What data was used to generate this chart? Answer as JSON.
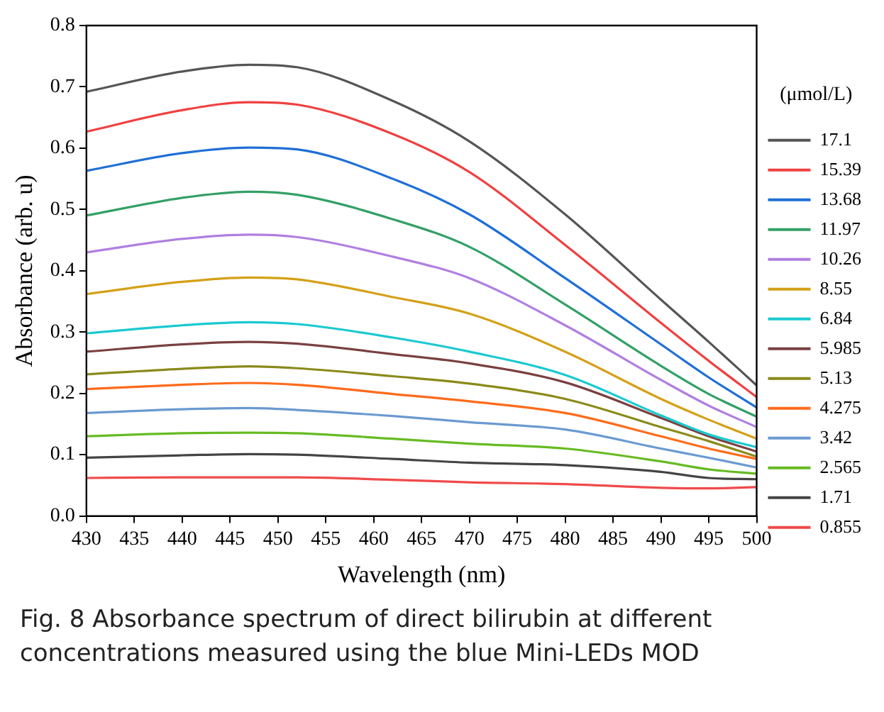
{
  "chart_data": {
    "type": "line",
    "xlabel": "Wavelength (nm)",
    "ylabel": "Absorbance (arb. u)",
    "legend_title": "(μmol/L)",
    "legend": "right",
    "grid": false,
    "marker": "none",
    "line_style": "solid",
    "x": [
      430,
      440,
      447,
      452,
      462,
      470,
      480,
      490,
      495,
      500
    ],
    "xlim": [
      430,
      500
    ],
    "xticks": [
      430,
      435,
      440,
      445,
      450,
      455,
      460,
      465,
      470,
      475,
      480,
      485,
      490,
      495,
      500
    ],
    "ylim": [
      0,
      0.8
    ],
    "yticks": [
      {
        "value": 0,
        "label": "0.0"
      },
      0.1,
      0.2,
      0.3,
      0.4,
      0.5,
      0.6,
      0.7,
      0.8
    ],
    "series": [
      {
        "name": "17.1",
        "color": "#555555",
        "values": [
          0.692,
          0.725,
          0.736,
          0.732,
          0.677,
          0.611,
          0.492,
          0.353,
          0.284,
          0.213
        ]
      },
      {
        "name": "15.39",
        "color": "#f04040",
        "values": [
          0.627,
          0.662,
          0.675,
          0.671,
          0.623,
          0.561,
          0.442,
          0.315,
          0.253,
          0.194
        ]
      },
      {
        "name": "13.68",
        "color": "#1f6fd6",
        "values": [
          0.563,
          0.592,
          0.601,
          0.598,
          0.55,
          0.492,
          0.388,
          0.28,
          0.226,
          0.177
        ]
      },
      {
        "name": "11.97",
        "color": "#33a066",
        "values": [
          0.49,
          0.519,
          0.529,
          0.524,
          0.484,
          0.439,
          0.345,
          0.245,
          0.199,
          0.162
        ]
      },
      {
        "name": "10.26",
        "color": "#b07fe0",
        "values": [
          0.43,
          0.452,
          0.459,
          0.455,
          0.423,
          0.388,
          0.311,
          0.222,
          0.18,
          0.145
        ]
      },
      {
        "name": "8.55",
        "color": "#d4a017",
        "values": [
          0.362,
          0.382,
          0.389,
          0.386,
          0.357,
          0.33,
          0.268,
          0.191,
          0.157,
          0.126
        ]
      },
      {
        "name": "6.84",
        "color": "#1ac9d0",
        "values": [
          0.298,
          0.311,
          0.316,
          0.313,
          0.291,
          0.268,
          0.23,
          0.164,
          0.133,
          0.112
        ]
      },
      {
        "name": "5.985",
        "color": "#7a4040",
        "values": [
          0.268,
          0.28,
          0.284,
          0.281,
          0.264,
          0.249,
          0.218,
          0.16,
          0.13,
          0.105
        ]
      },
      {
        "name": "5.13",
        "color": "#8a8a1a",
        "values": [
          0.231,
          0.24,
          0.244,
          0.241,
          0.228,
          0.216,
          0.191,
          0.145,
          0.122,
          0.097
        ]
      },
      {
        "name": "4.275",
        "color": "#ff6a1a",
        "values": [
          0.207,
          0.214,
          0.217,
          0.214,
          0.199,
          0.187,
          0.168,
          0.13,
          0.11,
          0.093
        ]
      },
      {
        "name": "3.42",
        "color": "#6a9ad0",
        "values": [
          0.168,
          0.174,
          0.176,
          0.173,
          0.163,
          0.153,
          0.141,
          0.11,
          0.095,
          0.079
        ]
      },
      {
        "name": "2.565",
        "color": "#66bb22",
        "values": [
          0.13,
          0.135,
          0.136,
          0.135,
          0.126,
          0.118,
          0.11,
          0.089,
          0.076,
          0.069
        ]
      },
      {
        "name": "1.71",
        "color": "#444444",
        "values": [
          0.095,
          0.099,
          0.101,
          0.1,
          0.093,
          0.087,
          0.083,
          0.072,
          0.062,
          0.06
        ]
      },
      {
        "name": "0.855",
        "color": "#f04a4a",
        "values": [
          0.062,
          0.063,
          0.063,
          0.063,
          0.059,
          0.055,
          0.052,
          0.046,
          0.045,
          0.047
        ]
      }
    ],
    "annotations": [
      "Fig. 8  Absorbance spectrum of direct bilirubin at different concentrations measured using the blue Mini-LEDs MOD"
    ]
  }
}
